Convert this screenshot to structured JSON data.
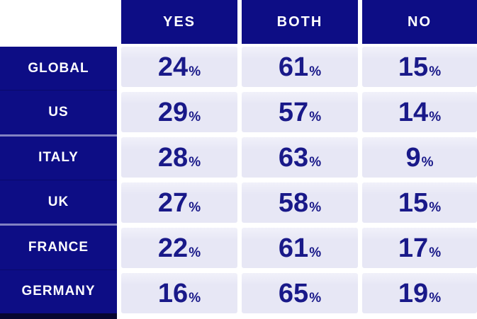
{
  "chart_data": {
    "type": "table",
    "title": "",
    "columns": [
      "YES",
      "BOTH",
      "NO"
    ],
    "rows": [
      {
        "label": "GLOBAL",
        "values": [
          "24",
          "61",
          "15"
        ]
      },
      {
        "label": "US",
        "values": [
          "29",
          "57",
          "14"
        ]
      },
      {
        "label": "ITALY",
        "values": [
          "28",
          "63",
          "9"
        ]
      },
      {
        "label": "UK",
        "values": [
          "27",
          "58",
          "15"
        ]
      },
      {
        "label": "FRANCE",
        "values": [
          "22",
          "61",
          "17"
        ]
      },
      {
        "label": "GERMANY",
        "values": [
          "16",
          "65",
          "19"
        ]
      }
    ],
    "value_unit": "percent",
    "percent_suffix": "%",
    "layout": {
      "header_position": "top",
      "labels_position": "left",
      "grid": "off"
    }
  },
  "colors": {
    "header_bg": "#0d0d85",
    "label_bg": "#0d0d85",
    "cell_bg": "#e7e7f5",
    "value_text": "#191989",
    "header_text": "#ffffff",
    "bottom_strip": "#060630",
    "page_bg": "#ffffff"
  }
}
